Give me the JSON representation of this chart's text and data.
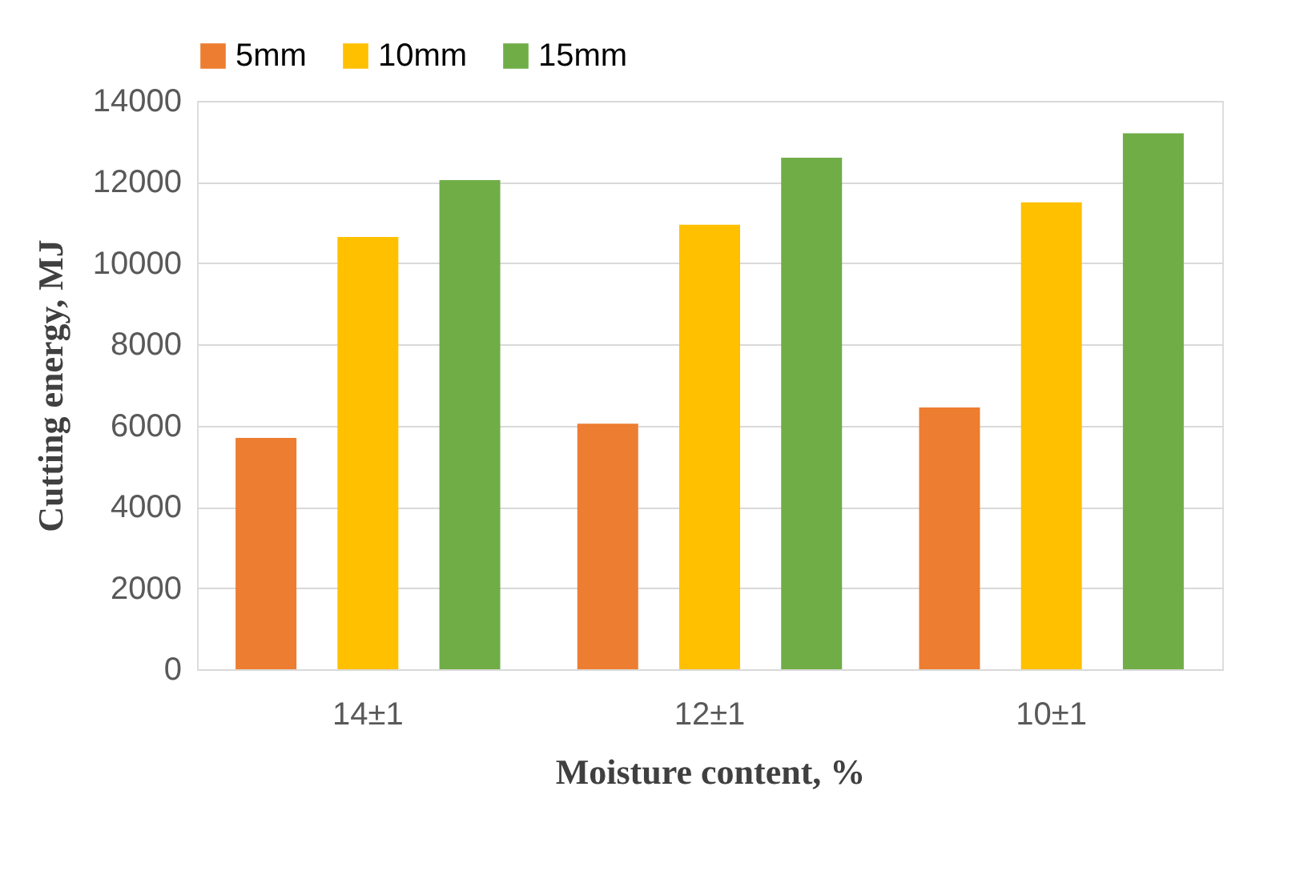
{
  "chart_data": {
    "type": "bar",
    "xlabel": "Moisture content, %",
    "ylabel": "Cutting energy, MJ",
    "categories": [
      "14±1",
      "12±1",
      "10±1"
    ],
    "series": [
      {
        "name": "5mm",
        "color": "#ed7d31",
        "values": [
          5700,
          6050,
          6450
        ]
      },
      {
        "name": "10mm",
        "color": "#ffc000",
        "values": [
          10650,
          10950,
          11500
        ]
      },
      {
        "name": "15mm",
        "color": "#70ad47",
        "values": [
          12050,
          12600,
          13200
        ]
      }
    ],
    "ylim": [
      0,
      14000
    ],
    "yticks": [
      0,
      2000,
      4000,
      6000,
      8000,
      10000,
      12000,
      14000
    ],
    "grid": "y",
    "legend": "top"
  }
}
